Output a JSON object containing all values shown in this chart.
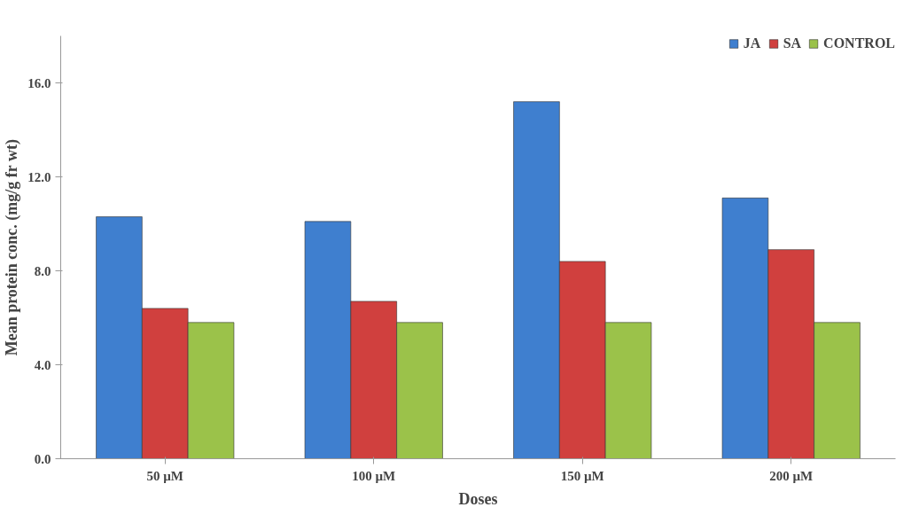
{
  "chart_data": {
    "type": "bar",
    "xlabel": "Doses",
    "ylabel": "Mean protein conc. (mg/g fr wt)",
    "categories": [
      "50 µM",
      "100 µM",
      "150 µM",
      "200 µM"
    ],
    "series": [
      {
        "name": "JA",
        "color": "#3f7fcf",
        "values": [
          10.3,
          10.1,
          15.2,
          11.1
        ]
      },
      {
        "name": "SA",
        "color": "#d0403e",
        "values": [
          6.4,
          6.7,
          8.4,
          8.9
        ]
      },
      {
        "name": "CONTROL",
        "color": "#9bc24a",
        "values": [
          5.8,
          5.8,
          5.8,
          5.8
        ]
      }
    ],
    "ylim": [
      0,
      18
    ],
    "yticks": [
      {
        "value": 0,
        "label": "0.0"
      },
      {
        "value": 4,
        "label": "4.0"
      },
      {
        "value": 8,
        "label": "8.0"
      },
      {
        "value": 12,
        "label": "12.0"
      },
      {
        "value": 16,
        "label": "16.0"
      }
    ],
    "grid": false,
    "legend": "top right"
  }
}
